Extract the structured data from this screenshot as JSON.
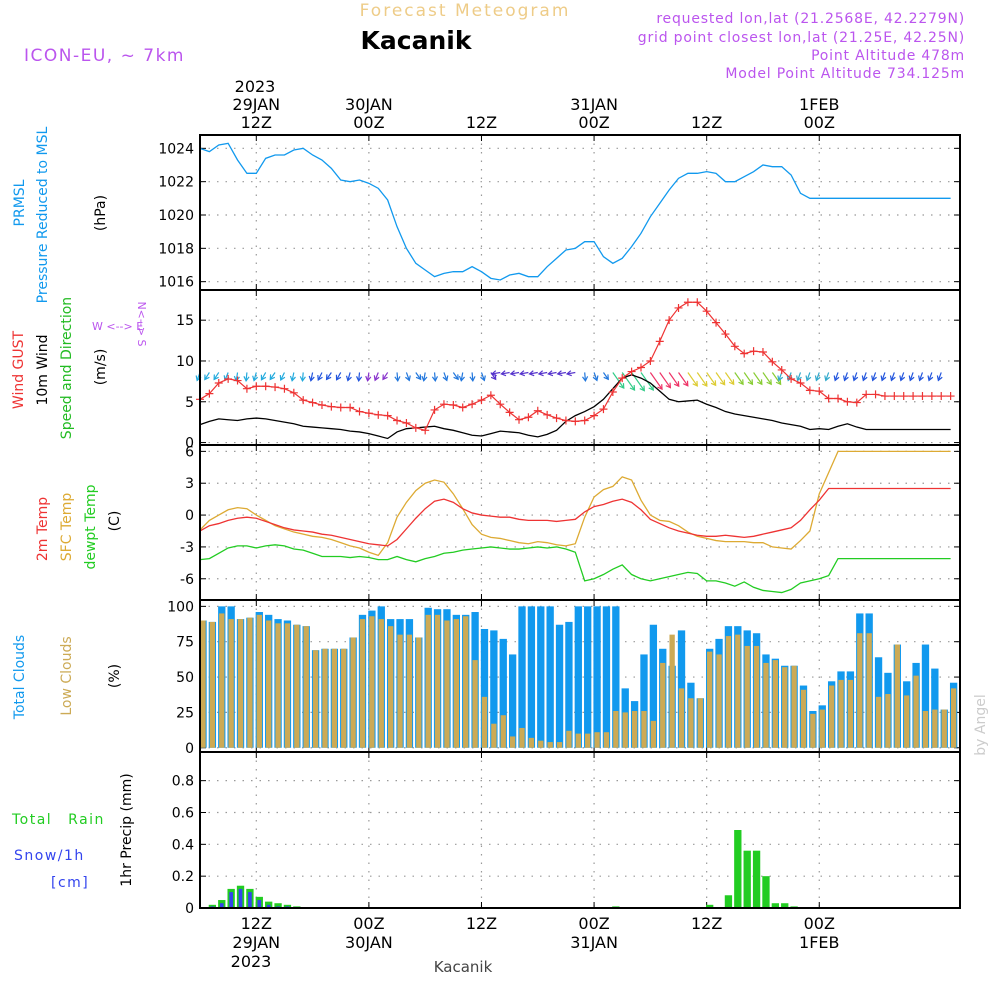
{
  "header": {
    "forecast_title": "Forecast Meteogram",
    "station": "Kacanik",
    "model": "ICON-EU, ~ 7km",
    "requested": "requested lon,lat (21.2568E, 42.2279N)",
    "grid_point": "grid point closest lon,lat (21.25E, 42.25N)",
    "point_altitude": "Point Altitude 478m",
    "model_altitude": "Model Point Altitude 734.125m"
  },
  "time_axis": {
    "top_year": "2023",
    "bottom_year": "2023",
    "footer_station": "Kacanik",
    "watermark": "by Angel",
    "start_hour": 0,
    "end_hour": 81,
    "ticks": [
      {
        "hour": 6,
        "line1": "12Z",
        "line2": "29JAN"
      },
      {
        "hour": 18,
        "line1": "00Z",
        "line2": "30JAN"
      },
      {
        "hour": 30,
        "line1": "12Z",
        "line2": ""
      },
      {
        "hour": 42,
        "line1": "00Z",
        "line2": "31JAN"
      },
      {
        "hour": 54,
        "line1": "12Z",
        "line2": ""
      },
      {
        "hour": 66,
        "line1": "00Z",
        "line2": "1FEB"
      }
    ]
  },
  "panel_labels": {
    "pressure": {
      "line1": "PRMSL",
      "line2": "Pressure Reduced to MSL",
      "unit": "(hPa)"
    },
    "wind": {
      "line1": "Wind GUST",
      "line2": "10m Wind",
      "line3": "Speed and Direction",
      "unit": "(m/s)",
      "compass_ns": "N<--> S",
      "compass_we": "W <--> E"
    },
    "temp": {
      "line1": "2m Temp",
      "line2": "SFC Temp",
      "line3": "dewpt Temp",
      "unit": "(C)"
    },
    "clouds": {
      "line1": "Total Clouds",
      "line2": "Low Clouds",
      "unit": "(%)"
    },
    "precip": {
      "line1": "Total Rain",
      "line2": "Snow/1h",
      "line3": "[cm]",
      "unit": "1hr Precip (mm)"
    }
  },
  "colors": {
    "pressure": "#1199ee",
    "gust": "#ee3333",
    "wind": "#000000",
    "wind_label": "#22bb22",
    "temp2m": "#ee3333",
    "sfc": "#ddaa33",
    "dewpt": "#22cc22",
    "total_clouds": "#1199ee",
    "low_clouds": "#ccaa55",
    "rain": "#22cc22",
    "snow": "#3344ee",
    "header_purple": "#bb55ee",
    "forecast_title": "#eecc88"
  },
  "chart_data": [
    {
      "type": "line",
      "name": "pressure",
      "ylim": [
        1015.5,
        1024.8
      ],
      "yticks": [
        1016,
        1018,
        1020,
        1022,
        1024
      ],
      "grid": true,
      "x_hours": [
        0,
        1,
        2,
        3,
        4,
        5,
        6,
        7,
        8,
        9,
        10,
        11,
        12,
        13,
        14,
        15,
        16,
        17,
        18,
        19,
        20,
        21,
        22,
        23,
        24,
        25,
        26,
        27,
        28,
        29,
        30,
        31,
        32,
        33,
        34,
        35,
        36,
        37,
        38,
        39,
        40,
        41,
        42,
        43,
        44,
        45,
        46,
        47,
        48,
        49,
        50,
        51,
        52,
        53,
        54,
        55,
        56,
        57,
        58,
        59,
        60,
        61,
        62,
        63,
        64,
        65,
        66,
        67,
        68,
        69,
        70,
        71,
        72,
        73,
        74,
        75,
        76,
        77,
        78,
        79,
        80
      ],
      "values": [
        1024.0,
        1023.8,
        1024.2,
        1024.3,
        1023.3,
        1022.5,
        1022.5,
        1023.4,
        1023.6,
        1023.6,
        1023.9,
        1024.0,
        1023.6,
        1023.3,
        1022.8,
        1022.1,
        1022.0,
        1022.1,
        1021.9,
        1021.6,
        1020.9,
        1019.3,
        1018.0,
        1017.1,
        1016.7,
        1016.3,
        1016.5,
        1016.6,
        1016.6,
        1016.9,
        1016.6,
        1016.2,
        1016.1,
        1016.4,
        1016.5,
        1016.3,
        1016.3,
        1016.9,
        1017.4,
        1017.9,
        1018.0,
        1018.4,
        1018.4,
        1017.5,
        1017.1,
        1017.4,
        1018.1,
        1018.9,
        1019.9,
        1020.7,
        1021.5,
        1022.2,
        1022.5,
        1022.5,
        1022.6,
        1022.5,
        1022.0,
        1022.0,
        1022.3,
        1022.6,
        1023.0,
        1022.9,
        1022.9,
        1022.4,
        1021.3,
        1021.0,
        1021.0,
        1021.0,
        1021.0,
        1021.0,
        1021.0,
        1021.0,
        1021.0,
        1021.0,
        1021.0,
        1021.0,
        1021.0,
        1021.0,
        1021.0,
        1021.0,
        1021.0
      ]
    },
    {
      "type": "line",
      "name": "wind",
      "ylim": [
        -0.3,
        18.7
      ],
      "yticks": [
        0,
        5,
        10,
        15
      ],
      "grid": true,
      "x_hours": [
        0,
        1,
        2,
        3,
        4,
        5,
        6,
        7,
        8,
        9,
        10,
        11,
        12,
        13,
        14,
        15,
        16,
        17,
        18,
        19,
        20,
        21,
        22,
        23,
        24,
        25,
        26,
        27,
        28,
        29,
        30,
        31,
        32,
        33,
        34,
        35,
        36,
        37,
        38,
        39,
        40,
        41,
        42,
        43,
        44,
        45,
        46,
        47,
        48,
        49,
        50,
        51,
        52,
        53,
        54,
        55,
        56,
        57,
        58,
        59,
        60,
        61,
        62,
        63,
        64,
        65,
        66,
        67,
        68,
        69,
        70,
        71,
        72,
        73,
        74,
        75,
        76,
        77,
        78,
        79,
        80
      ],
      "gust": [
        5.3,
        6.0,
        7.3,
        7.8,
        7.6,
        6.6,
        6.9,
        6.9,
        6.8,
        6.6,
        6.1,
        5.2,
        4.9,
        4.6,
        4.4,
        4.3,
        4.3,
        3.8,
        3.6,
        3.4,
        3.3,
        2.7,
        2.4,
        1.8,
        1.5,
        4.0,
        4.7,
        4.6,
        4.3,
        4.7,
        5.2,
        5.8,
        4.7,
        3.7,
        2.8,
        3.1,
        3.9,
        3.4,
        3.0,
        2.7,
        2.6,
        2.7,
        3.3,
        4.1,
        6.2,
        7.9,
        8.7,
        9.2,
        10.0,
        12.4,
        15.0,
        16.5,
        17.2,
        17.2,
        16.1,
        14.7,
        13.3,
        11.8,
        10.9,
        11.2,
        11.1,
        9.9,
        8.9,
        7.8,
        7.3,
        6.4,
        6.3,
        5.4,
        5.4,
        5.0,
        4.9,
        5.9,
        5.9,
        5.7,
        5.7,
        5.7,
        5.7,
        5.7,
        5.7,
        5.7,
        5.7
      ],
      "wind": [
        2.2,
        2.6,
        2.9,
        2.8,
        2.7,
        2.9,
        3.0,
        2.9,
        2.7,
        2.5,
        2.3,
        2.0,
        1.9,
        1.8,
        1.7,
        1.6,
        1.4,
        1.3,
        1.1,
        0.8,
        0.5,
        1.3,
        1.7,
        1.8,
        1.9,
        2.0,
        1.7,
        1.5,
        1.2,
        0.9,
        0.8,
        1.1,
        1.4,
        1.3,
        1.2,
        0.9,
        0.7,
        1.0,
        1.5,
        2.6,
        3.3,
        3.8,
        4.4,
        5.3,
        6.6,
        7.9,
        8.3,
        7.9,
        7.3,
        6.3,
        5.3,
        5.0,
        5.1,
        5.2,
        4.7,
        4.3,
        3.8,
        3.5,
        3.3,
        3.1,
        2.9,
        2.7,
        2.4,
        2.2,
        2.0,
        1.6,
        1.7,
        1.6,
        2.0,
        2.3,
        1.9,
        1.6,
        1.6,
        1.6,
        1.6,
        1.6,
        1.6,
        1.6,
        1.6,
        1.6,
        1.6
      ],
      "arrow_level": 8.1
    },
    {
      "type": "line",
      "name": "temperature",
      "ylim": [
        -8.0,
        6.6
      ],
      "yticks": [
        -6,
        -3,
        0,
        3,
        6
      ],
      "grid": true,
      "x_hours": [
        0,
        1,
        2,
        3,
        4,
        5,
        6,
        7,
        8,
        9,
        10,
        11,
        12,
        13,
        14,
        15,
        16,
        17,
        18,
        19,
        20,
        21,
        22,
        23,
        24,
        25,
        26,
        27,
        28,
        29,
        30,
        31,
        32,
        33,
        34,
        35,
        36,
        37,
        38,
        39,
        40,
        41,
        42,
        43,
        44,
        45,
        46,
        47,
        48,
        49,
        50,
        51,
        52,
        53,
        54,
        55,
        56,
        57,
        58,
        59,
        60,
        61,
        62,
        63,
        64,
        65,
        66,
        67,
        68,
        69,
        70,
        71,
        72,
        73,
        74,
        75,
        76,
        77,
        78,
        79,
        80
      ],
      "t2m": [
        -1.5,
        -1.0,
        -0.8,
        -0.5,
        -0.3,
        -0.2,
        -0.3,
        -0.6,
        -0.9,
        -1.2,
        -1.4,
        -1.5,
        -1.6,
        -1.8,
        -1.9,
        -2.1,
        -2.3,
        -2.5,
        -2.7,
        -2.8,
        -2.9,
        -2.3,
        -1.3,
        -0.3,
        0.6,
        1.3,
        1.5,
        1.2,
        0.6,
        0.2,
        0.0,
        -0.1,
        -0.2,
        -0.2,
        -0.4,
        -0.5,
        -0.5,
        -0.5,
        -0.6,
        -0.5,
        -0.4,
        0.3,
        0.8,
        1.0,
        1.3,
        1.5,
        1.2,
        0.5,
        -0.4,
        -0.8,
        -1.2,
        -1.5,
        -1.7,
        -1.9,
        -2.0,
        -2.0,
        -1.9,
        -2.0,
        -2.1,
        -2.0,
        -1.8,
        -1.6,
        -1.4,
        -1.2,
        -0.5,
        0.5,
        1.4,
        2.5,
        2.5,
        2.5,
        2.5,
        2.5,
        2.5,
        2.5,
        2.5,
        2.5,
        2.5,
        2.5,
        2.5,
        2.5,
        2.5
      ],
      "sfc": [
        -1.4,
        -0.5,
        0.0,
        0.5,
        0.7,
        0.6,
        0.0,
        -0.5,
        -1.0,
        -1.3,
        -1.6,
        -1.8,
        -2.0,
        -2.1,
        -2.3,
        -2.6,
        -2.9,
        -3.1,
        -3.5,
        -3.8,
        -2.6,
        -0.2,
        1.2,
        2.3,
        3.0,
        3.3,
        3.1,
        2.0,
        0.6,
        -0.9,
        -1.8,
        -2.1,
        -2.2,
        -2.4,
        -2.6,
        -2.7,
        -2.5,
        -2.6,
        -2.8,
        -2.9,
        -2.7,
        -0.2,
        1.7,
        2.4,
        2.7,
        3.6,
        3.3,
        1.4,
        0.0,
        -0.5,
        -0.6,
        -1.0,
        -1.6,
        -2.0,
        -2.2,
        -2.4,
        -2.5,
        -2.5,
        -2.5,
        -2.6,
        -2.6,
        -3.0,
        -3.1,
        -3.2,
        -2.4,
        -1.5,
        2.0,
        4.0,
        6.0,
        6.0,
        6.0,
        6.0,
        6.0,
        6.0,
        6.0,
        6.0,
        6.0,
        6.0,
        6.0,
        6.0,
        6.0
      ],
      "dewpt": [
        -4.2,
        -4.1,
        -3.6,
        -3.1,
        -2.9,
        -2.9,
        -3.1,
        -2.9,
        -2.8,
        -2.9,
        -3.2,
        -3.3,
        -3.6,
        -3.9,
        -3.9,
        -3.9,
        -4.0,
        -3.9,
        -4.0,
        -4.2,
        -4.2,
        -3.9,
        -4.2,
        -4.4,
        -4.1,
        -3.9,
        -3.6,
        -3.5,
        -3.3,
        -3.2,
        -3.1,
        -3.0,
        -3.1,
        -3.2,
        -3.2,
        -3.1,
        -3.0,
        -3.1,
        -3.0,
        -3.2,
        -3.5,
        -6.2,
        -6.0,
        -5.6,
        -5.1,
        -4.7,
        -5.6,
        -6.0,
        -6.2,
        -6.0,
        -5.8,
        -5.6,
        -5.4,
        -5.5,
        -6.2,
        -6.2,
        -6.4,
        -6.7,
        -6.3,
        -6.8,
        -7.1,
        -7.2,
        -7.3,
        -7.0,
        -6.4,
        -6.2,
        -6.0,
        -5.7,
        -4.1,
        -4.1,
        -4.1,
        -4.1,
        -4.1,
        -4.1,
        -4.1,
        -4.1,
        -4.1,
        -4.1,
        -4.1,
        -4.1,
        -4.1
      ]
    },
    {
      "type": "bar",
      "name": "clouds",
      "ylim": [
        -3.0,
        104.5
      ],
      "yticks": [
        0,
        25,
        50,
        75,
        100
      ],
      "grid": true,
      "x_hours": [
        0,
        1,
        2,
        3,
        4,
        5,
        6,
        7,
        8,
        9,
        10,
        11,
        12,
        13,
        14,
        15,
        16,
        17,
        18,
        19,
        20,
        21,
        22,
        23,
        24,
        25,
        26,
        27,
        28,
        29,
        30,
        31,
        32,
        33,
        34,
        35,
        36,
        37,
        38,
        39,
        40,
        41,
        42,
        43,
        44,
        45,
        46,
        47,
        48,
        49,
        50,
        51,
        52,
        53,
        54,
        55,
        56,
        57,
        58,
        59,
        60,
        61,
        62,
        63,
        64,
        65,
        66,
        67,
        68,
        69,
        70,
        71,
        72,
        73,
        74,
        75,
        76,
        77,
        78,
        79,
        80
      ],
      "total": [
        90,
        89,
        100,
        100,
        91,
        92,
        96,
        94,
        91,
        90,
        87,
        86,
        69,
        70,
        70,
        70,
        78,
        94,
        97,
        100,
        91,
        91,
        91,
        78,
        99,
        98,
        98,
        94,
        94,
        96,
        84,
        83,
        77,
        66,
        100,
        100,
        100,
        100,
        87,
        89,
        100,
        100,
        100,
        100,
        100,
        42,
        33,
        66,
        87,
        70,
        58,
        83,
        46,
        35,
        70,
        77,
        86,
        86,
        83,
        81,
        66,
        63,
        58,
        58,
        44,
        26,
        30,
        47,
        54,
        54,
        95,
        95,
        64,
        53,
        73,
        47,
        60,
        73,
        56,
        27,
        46
      ],
      "low": [
        90,
        89,
        95,
        91,
        91,
        92,
        94,
        90,
        88,
        88,
        87,
        86,
        69,
        70,
        70,
        70,
        78,
        91,
        93,
        91,
        86,
        80,
        80,
        78,
        94,
        94,
        90,
        91,
        93,
        62,
        36,
        17,
        23,
        8,
        14,
        7,
        5,
        4,
        4,
        12,
        10,
        10,
        11,
        11,
        26,
        25,
        26,
        26,
        19,
        60,
        80,
        42,
        35,
        35,
        68,
        66,
        79,
        80,
        72,
        72,
        60,
        62,
        57,
        58,
        41,
        24,
        27,
        44,
        48,
        48,
        81,
        81,
        36,
        38,
        73,
        37,
        51,
        26,
        27,
        27,
        42
      ]
    },
    {
      "type": "bar",
      "name": "precipitation",
      "ylim": [
        0,
        0.98
      ],
      "yticks": [
        0,
        0.2,
        0.4,
        0.6,
        0.8
      ],
      "grid": true,
      "x_hours": [
        1,
        2,
        3,
        4,
        5,
        6,
        7,
        8,
        9,
        10,
        44,
        54,
        56,
        57,
        58,
        59,
        60,
        61,
        62,
        63
      ],
      "rain": [
        0.02,
        0.05,
        0.12,
        0.14,
        0.12,
        0.07,
        0.04,
        0.03,
        0.02,
        0.01,
        0.01,
        0.02,
        0.08,
        0.49,
        0.36,
        0.36,
        0.2,
        0.03,
        0.03,
        0.01
      ],
      "snow": [
        0.01,
        0.03,
        0.1,
        0.12,
        0.1,
        0.05,
        0.02,
        0.01,
        0.01,
        0.0,
        0.0,
        0.0,
        0.0,
        0.0,
        0.0,
        0.0,
        0.0,
        0.0,
        0.0,
        0.0
      ]
    }
  ]
}
